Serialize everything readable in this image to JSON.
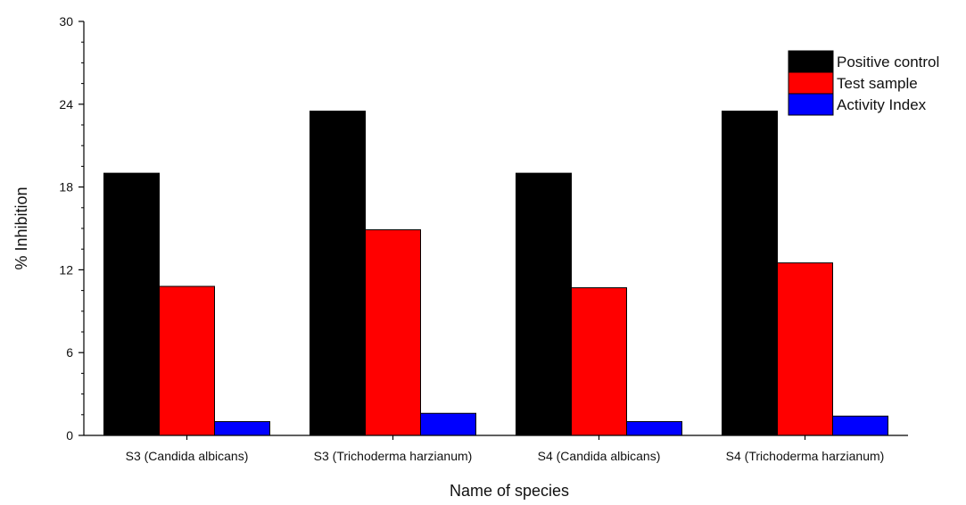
{
  "chart_data": {
    "type": "bar",
    "title": "",
    "xlabel": "Name of species",
    "ylabel": "% Inhibition",
    "ylim": [
      0,
      30
    ],
    "yticks": [
      "0",
      "6",
      "12",
      "18",
      "24",
      "30"
    ],
    "categories": [
      "S3 (Candida albicans)",
      "S3 (Trichoderma harzianum)",
      "S4 (Candida albicans)",
      "S4 (Trichoderma harzianum)"
    ],
    "series": [
      {
        "name": "Positive control",
        "color": "#000000",
        "values": [
          19,
          23.5,
          19,
          23.5
        ]
      },
      {
        "name": "Test sample",
        "color": "#ff0000",
        "values": [
          10.8,
          14.9,
          10.7,
          12.5
        ]
      },
      {
        "name": "Activity Index",
        "color": "#0000ff",
        "values": [
          1.0,
          1.6,
          1.0,
          1.4
        ]
      }
    ],
    "grid": false,
    "legend_position": "top-right"
  }
}
